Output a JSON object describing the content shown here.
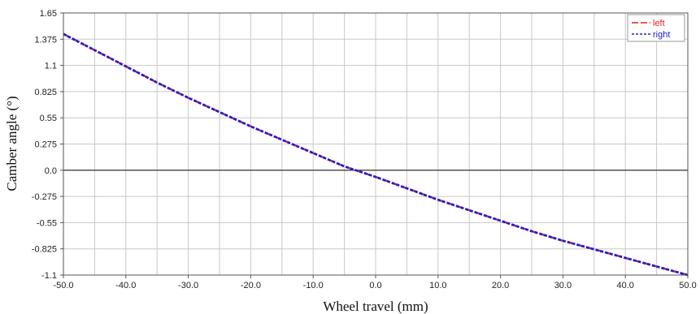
{
  "chart_data": {
    "type": "line",
    "xlabel": "Wheel travel (mm)",
    "ylabel": "Camber angle (°)",
    "xlim": [
      -50,
      50
    ],
    "ylim": [
      -1.1,
      1.65
    ],
    "x_ticks": [
      -50,
      -40,
      -30,
      -20,
      -10,
      0,
      10,
      20,
      30,
      40,
      50
    ],
    "x_tick_labels": [
      "-50.0",
      "-40.0",
      "-30.0",
      "-20.0",
      "-10.0",
      "0.0",
      "10.0",
      "20.0",
      "30.0",
      "40.0",
      "50.0"
    ],
    "y_ticks": [
      -1.1,
      -0.825,
      -0.55,
      -0.275,
      0,
      0.275,
      0.55,
      0.825,
      1.1,
      1.375,
      1.65
    ],
    "y_tick_labels": [
      "-1.1",
      "-0.825",
      "-0.55",
      "-0.275",
      "0.0",
      "0.275",
      "0.55",
      "0.825",
      "1.1",
      "1.375",
      "1.65"
    ],
    "grid": true,
    "minor_grid_x": 5,
    "legend_position": "top-right",
    "x": [
      -50,
      -45,
      -40,
      -35,
      -30,
      -25,
      -20,
      -15,
      -10,
      -5,
      0,
      5,
      10,
      15,
      20,
      25,
      30,
      35,
      40,
      45,
      50
    ],
    "series": [
      {
        "name": "left",
        "color": "#e02020",
        "dash": "long-dash",
        "values": [
          1.43,
          1.26,
          1.09,
          0.92,
          0.76,
          0.61,
          0.46,
          0.32,
          0.18,
          0.04,
          -0.07,
          -0.19,
          -0.31,
          -0.42,
          -0.53,
          -0.64,
          -0.74,
          -0.83,
          -0.92,
          -1.01,
          -1.1
        ]
      },
      {
        "name": "right",
        "color": "#2020d0",
        "dash": "short-dash",
        "values": [
          1.43,
          1.26,
          1.09,
          0.92,
          0.76,
          0.61,
          0.46,
          0.32,
          0.18,
          0.04,
          -0.07,
          -0.19,
          -0.31,
          -0.42,
          -0.53,
          -0.64,
          -0.74,
          -0.83,
          -0.92,
          -1.01,
          -1.1
        ]
      }
    ]
  }
}
